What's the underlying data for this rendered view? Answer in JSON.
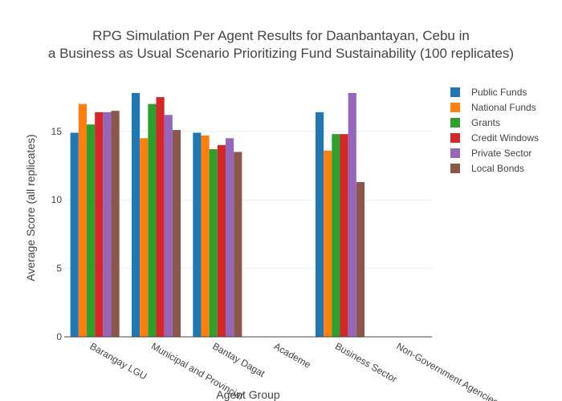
{
  "chart_data": {
    "type": "bar",
    "title": "RPG Simulation Per Agent Results for Daanbantayan, Cebu in",
    "subtitle": "a Business as Usual Scenario Prioritizing Fund Sustainability (100 replicates)",
    "xlabel": "Agent Group",
    "ylabel": "Average Score (all replicates)",
    "ylim": [
      0,
      18.5
    ],
    "yticks": [
      0,
      5,
      10,
      15
    ],
    "grid": true,
    "legend_position": "top-right",
    "categories": [
      "Barangay LGU",
      "Municipal and Provincial",
      "Bantay Dagat",
      "Academe",
      "Business Sector",
      "Non-Government Agencies"
    ],
    "series": [
      {
        "name": "Public Funds",
        "color": "#1f77b4",
        "values": [
          14.9,
          17.8,
          14.9,
          null,
          16.4,
          null
        ]
      },
      {
        "name": "National Funds",
        "color": "#ff7f0e",
        "values": [
          17.0,
          14.5,
          14.7,
          null,
          13.6,
          null
        ]
      },
      {
        "name": "Grants",
        "color": "#2ca02c",
        "values": [
          15.5,
          17.0,
          13.7,
          null,
          14.8,
          null
        ]
      },
      {
        "name": "Credit Windows",
        "color": "#d62728",
        "values": [
          16.4,
          17.5,
          14.0,
          null,
          14.8,
          null
        ]
      },
      {
        "name": "Private Sector",
        "color": "#9467bd",
        "values": [
          16.4,
          16.2,
          14.5,
          null,
          17.8,
          null
        ]
      },
      {
        "name": "Local Bonds",
        "color": "#8c564b",
        "values": [
          16.5,
          15.1,
          13.5,
          null,
          11.3,
          null
        ]
      }
    ]
  }
}
